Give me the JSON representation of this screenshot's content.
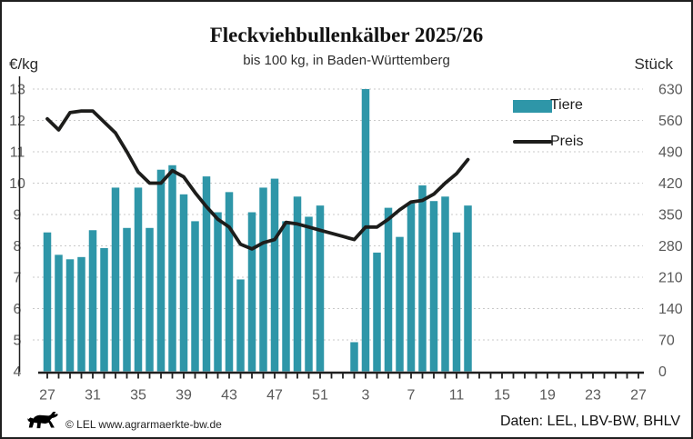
{
  "title": "Fleckviehbullenkälber 2025/26",
  "subtitle": "bis 100 kg, in Baden-Württemberg",
  "axes": {
    "left_unit": "€/kg",
    "right_unit": "Stück"
  },
  "legend": {
    "bars_label": "Tiere",
    "line_label": "Preis"
  },
  "footer": {
    "copyright": "© LEL www.agrarmaerkte-bw.de",
    "source": "Daten: LEL, LBV-BW, BHLV"
  },
  "colors": {
    "bars": "#2E96A8",
    "line": "#1D1D1B",
    "grid": "#C9C9C9",
    "axis_text": "#595959",
    "axis_line": "#1F1F1F"
  },
  "chart_data": {
    "type": "bar+line",
    "title": "Fleckviehbullenkälber 2025/26",
    "subtitle": "bis 100 kg, in Baden-Württemberg",
    "x_axis": {
      "kind": "calendar-weeks",
      "start_week": 27,
      "weeks_per_year": 52,
      "tick_count": 53,
      "label_every": 4,
      "tick_labels": [
        "27",
        "31",
        "35",
        "39",
        "43",
        "47",
        "51",
        "3",
        "7",
        "11",
        "15",
        "19",
        "23",
        "27"
      ]
    },
    "left_axis": {
      "label": "€/kg",
      "min": 4,
      "max": 13,
      "ticks": [
        4,
        5,
        6,
        7,
        8,
        9,
        10,
        11,
        12,
        13
      ]
    },
    "right_axis": {
      "label": "Stück",
      "min": 0,
      "max": 630,
      "ticks": [
        0,
        70,
        140,
        210,
        280,
        350,
        420,
        490,
        560,
        630
      ]
    },
    "grid": "dashed-horizontal",
    "legend_position": "upper-right",
    "series": [
      {
        "name": "Tiere",
        "type": "bar",
        "axis": "right",
        "unit": "Stück",
        "weeks": [
          27,
          28,
          29,
          30,
          31,
          32,
          33,
          34,
          35,
          36,
          37,
          38,
          39,
          40,
          41,
          42,
          43,
          44,
          45,
          46,
          47,
          48,
          49,
          50,
          51,
          2,
          3,
          4,
          5,
          6,
          7,
          8,
          9,
          10,
          11,
          12
        ],
        "values": [
          310,
          260,
          250,
          255,
          315,
          275,
          410,
          320,
          410,
          320,
          450,
          460,
          395,
          335,
          435,
          355,
          400,
          205,
          355,
          410,
          430,
          335,
          390,
          345,
          370,
          65,
          630,
          265,
          365,
          300,
          375,
          415,
          380,
          390,
          310,
          370
        ]
      },
      {
        "name": "Preis",
        "type": "line",
        "axis": "left",
        "unit": "€/kg",
        "weeks": [
          27,
          28,
          29,
          30,
          31,
          32,
          33,
          34,
          35,
          36,
          37,
          38,
          39,
          40,
          41,
          42,
          43,
          44,
          45,
          46,
          47,
          48,
          49,
          50,
          51,
          52,
          1,
          2,
          3,
          4,
          5,
          6,
          7,
          8,
          9,
          10,
          11,
          12
        ],
        "values": [
          12.05,
          11.7,
          12.25,
          12.3,
          12.3,
          11.95,
          11.6,
          11.0,
          10.35,
          10.0,
          10.0,
          10.4,
          10.2,
          9.7,
          9.25,
          8.85,
          8.6,
          8.05,
          7.9,
          8.1,
          8.2,
          8.75,
          8.7,
          8.6,
          8.5,
          8.4,
          8.3,
          8.2,
          8.6,
          8.6,
          8.85,
          9.15,
          9.4,
          9.45,
          9.65,
          10.0,
          10.3,
          10.75
        ]
      }
    ]
  }
}
